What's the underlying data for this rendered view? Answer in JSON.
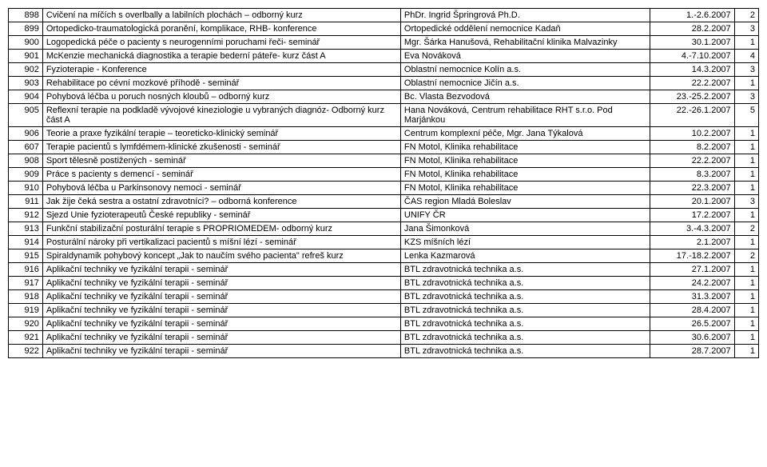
{
  "rows": [
    {
      "num": "898",
      "name": "Cvičení na míčích s overlbally a labilních plochách – odborný kurz",
      "org": "PhDr. Ingrid Špringrová Ph.D.",
      "date": "1.-2.6.2007",
      "last": "2"
    },
    {
      "num": "899",
      "name": "Ortopedicko-traumatologická poranění, komplikace, RHB- konference",
      "org": "Ortopedické oddělení nemocnice Kadaň",
      "date": "28.2.2007",
      "last": "3"
    },
    {
      "num": "900",
      "name": "Logopedická péče o pacienty s neurogenními poruchami řeči- seminář",
      "org": "Mgr. Šárka Hanušová, Rehabilitační klinika Malvazinky",
      "date": "30.1.2007",
      "last": "1"
    },
    {
      "num": "901",
      "name": "McKenzie mechanická diagnostika a terapie bederní páteře- kurz část A",
      "org": "Eva Nováková",
      "date": "4.-7.10.2007",
      "last": "4"
    },
    {
      "num": "902",
      "name": "Fyzioterapie - Konference",
      "org": "Oblastní nemocnice Kolín a.s.",
      "date": "14.3.2007",
      "last": "3"
    },
    {
      "num": "903",
      "name": "Rehabilitace po cévní mozkové příhodě - seminář",
      "org": "Oblastní nemocnice Jičín a.s.",
      "date": "22.2.2007",
      "last": "1"
    },
    {
      "num": "904",
      "name": "Pohybová léčba u poruch nosných kloubů – odborný kurz",
      "org": "Bc. Vlasta Bezvodová",
      "date": "23.-25.2.2007",
      "last": "3"
    },
    {
      "num": "905",
      "name": "Reflexní terapie na podkladě vývojové kineziologie u vybraných diagnóz- Odborný kurz část A",
      "org": "Hana Nováková, Centrum rehabilitace RHT s.r.o. Pod Marjánkou",
      "date": "22.-26.1.2007",
      "last": "5"
    },
    {
      "num": "906",
      "name": "Teorie a praxe fyzikální terapie – teoreticko-klinický seminář",
      "org": "Centrum komplexní péče, Mgr. Jana Týkalová",
      "date": "10.2.2007",
      "last": "1"
    },
    {
      "num": "607",
      "name": "Terapie pacientů s lymfdémem-klinické zkušenosti - seminář",
      "org": "FN Motol, Klinika rehabilitace",
      "date": "8.2.2007",
      "last": "1"
    },
    {
      "num": "908",
      "name": "Sport tělesně postižených - seminář",
      "org": "FN Motol, Klinika rehabilitace",
      "date": "22.2.2007",
      "last": "1"
    },
    {
      "num": "909",
      "name": "Práce s pacienty s demencí - seminář",
      "org": "FN Motol, Klinika rehabilitace",
      "date": "8.3.2007",
      "last": "1"
    },
    {
      "num": "910",
      "name": "Pohybová léčba u Parkinsonovy nemoci - seminář",
      "org": "FN Motol, Klinika rehabilitace",
      "date": "22.3.2007",
      "last": "1"
    },
    {
      "num": "911",
      "name": "Jak žije čeká sestra a ostatní zdravotníci? – odborná konference",
      "org": "ČAS region Mladá Boleslav",
      "date": "20.1.2007",
      "last": "3"
    },
    {
      "num": "912",
      "name": "Sjezd Unie fyzioterapeutů České republiky - seminář",
      "org": "UNIFY ČR",
      "date": "17.2.2007",
      "last": "1"
    },
    {
      "num": "913",
      "name": "Funkční stabilizační posturální terapie s PROPRIOMEDEM- odborný kurz",
      "org": "Jana Šimonková",
      "date": "3.-4.3.2007",
      "last": "2"
    },
    {
      "num": "914",
      "name": "Posturální nároky při vertikalizaci pacientů s míšní lézí - seminář",
      "org": "KZS míšních lézí",
      "date": "2.1.2007",
      "last": "1"
    },
    {
      "num": "915",
      "name": "Spiraldynamik pohybový koncept „Jak to naučím svého pacienta\"  refreš kurz",
      "org": "Lenka Kazmarová",
      "date": "17.-18.2.2007",
      "last": "2"
    },
    {
      "num": "916",
      "name": "Aplikační techniky ve fyzikální terapii - seminář",
      "org": "BTL zdravotnická technika a.s.",
      "date": "27.1.2007",
      "last": "1"
    },
    {
      "num": "917",
      "name": "Aplikační techniky ve fyzikální terapii - seminář",
      "org": "BTL zdravotnická technika a.s.",
      "date": "24.2.2007",
      "last": "1"
    },
    {
      "num": "918",
      "name": "Aplikační techniky ve fyzikální terapii - seminář",
      "org": "BTL zdravotnická technika a.s.",
      "date": "31.3.2007",
      "last": "1"
    },
    {
      "num": "919",
      "name": "Aplikační techniky ve fyzikální terapii - seminář",
      "org": "BTL zdravotnická technika a.s.",
      "date": "28.4.2007",
      "last": "1"
    },
    {
      "num": "920",
      "name": "Aplikační techniky ve fyzikální terapii - seminář",
      "org": "BTL zdravotnická technika a.s.",
      "date": "26.5.2007",
      "last": "1"
    },
    {
      "num": "921",
      "name": "Aplikační techniky ve fyzikální terapii - seminář",
      "org": "BTL zdravotnická technika a.s.",
      "date": "30.6.2007",
      "last": "1"
    },
    {
      "num": "922",
      "name": "Aplikační techniky ve fyzikální terapii - seminář",
      "org": "BTL zdravotnická technika a.s.",
      "date": "28.7.2007",
      "last": "1"
    }
  ]
}
